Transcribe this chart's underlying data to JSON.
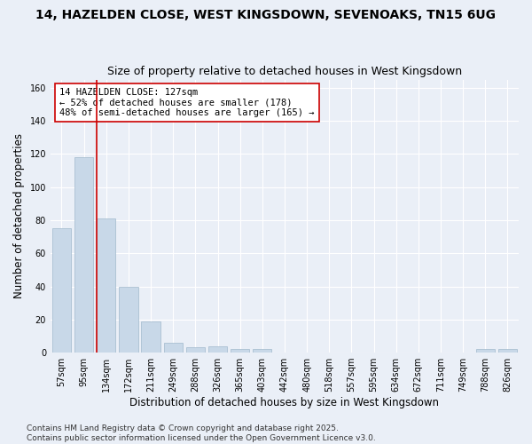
{
  "title1": "14, HAZELDEN CLOSE, WEST KINGSDOWN, SEVENOAKS, TN15 6UG",
  "title2": "Size of property relative to detached houses in West Kingsdown",
  "xlabel": "Distribution of detached houses by size in West Kingsdown",
  "ylabel": "Number of detached properties",
  "categories": [
    "57sqm",
    "95sqm",
    "134sqm",
    "172sqm",
    "211sqm",
    "249sqm",
    "288sqm",
    "326sqm",
    "365sqm",
    "403sqm",
    "442sqm",
    "480sqm",
    "518sqm",
    "557sqm",
    "595sqm",
    "634sqm",
    "672sqm",
    "711sqm",
    "749sqm",
    "788sqm",
    "826sqm"
  ],
  "values": [
    75,
    118,
    81,
    40,
    19,
    6,
    3,
    4,
    2,
    2,
    0,
    0,
    0,
    0,
    0,
    0,
    0,
    0,
    0,
    2,
    2
  ],
  "bar_color": "#c8d8e8",
  "bar_edge_color": "#a0b8cc",
  "vline_x_index": 1.57,
  "vline_color": "#cc0000",
  "annotation_text": "14 HAZELDEN CLOSE: 127sqm\n← 52% of detached houses are smaller (178)\n48% of semi-detached houses are larger (165) →",
  "annotation_box_color": "#ffffff",
  "annotation_box_edge": "#cc0000",
  "ylim": [
    0,
    165
  ],
  "yticks": [
    0,
    20,
    40,
    60,
    80,
    100,
    120,
    140,
    160
  ],
  "background_color": "#eaeff7",
  "grid_color": "#ffffff",
  "footnote": "Contains HM Land Registry data © Crown copyright and database right 2025.\nContains public sector information licensed under the Open Government Licence v3.0.",
  "title_fontsize": 10,
  "subtitle_fontsize": 9,
  "axis_label_fontsize": 8.5,
  "tick_fontsize": 7,
  "footnote_fontsize": 6.5,
  "annotation_fontsize": 7.5
}
